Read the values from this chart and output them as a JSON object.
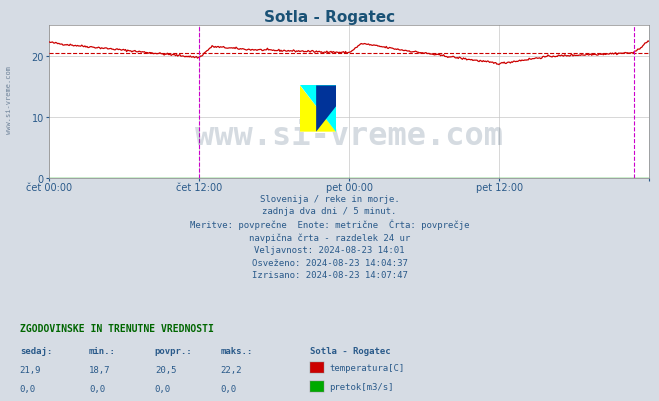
{
  "title": "Sotla - Rogatec",
  "title_color": "#1a5276",
  "bg_color": "#d6dce4",
  "plot_bg_color": "#ffffff",
  "grid_color": "#c8c8c8",
  "temp_line_color": "#cc0000",
  "avg_line_color": "#cc0000",
  "avg_line_value": 20.5,
  "vline_color": "#cc00cc",
  "xlabel_color": "#2a5a8a",
  "ylim": [
    0,
    25
  ],
  "yticks": [
    0,
    10,
    20
  ],
  "num_points": 576,
  "x_start": 0,
  "x_end": 2880,
  "xtick_positions": [
    0,
    720,
    1440,
    2160,
    2880
  ],
  "xtick_labels": [
    "čet 00:00",
    "čet 12:00",
    "pet 00:00",
    "pet 12:00",
    ""
  ],
  "vline_x": 720,
  "vline2_x": 2808,
  "info_lines": [
    "Slovenija / reke in morje.",
    "zadnja dva dni / 5 minut.",
    "Meritve: povprečne  Enote: metrične  Črta: povprečje",
    "navpična črta - razdelek 24 ur",
    "Veljavnost: 2024-08-23 14:01",
    "Osveženo: 2024-08-23 14:04:37",
    "Izrisano: 2024-08-23 14:07:47"
  ],
  "table_header": "ZGODOVINSKE IN TRENUTNE VREDNOSTI",
  "table_cols": [
    "sedaj:",
    "min.:",
    "povpr.:",
    "maks.:"
  ],
  "table_vals_temp": [
    "21,9",
    "18,7",
    "20,5",
    "22,2"
  ],
  "table_vals_flow": [
    "0,0",
    "0,0",
    "0,0",
    "0,0"
  ],
  "legend_title": "Sotla - Rogatec",
  "legend_temp_color": "#cc0000",
  "legend_flow_color": "#00aa00",
  "watermark_text": "www.si-vreme.com",
  "watermark_color": "#1a3a5c",
  "watermark_alpha": 0.18,
  "sidebar_text": "www.si-vreme.com",
  "sidebar_color": "#1a3a5c",
  "text_color": "#2a5a8a",
  "header_color": "#006600"
}
